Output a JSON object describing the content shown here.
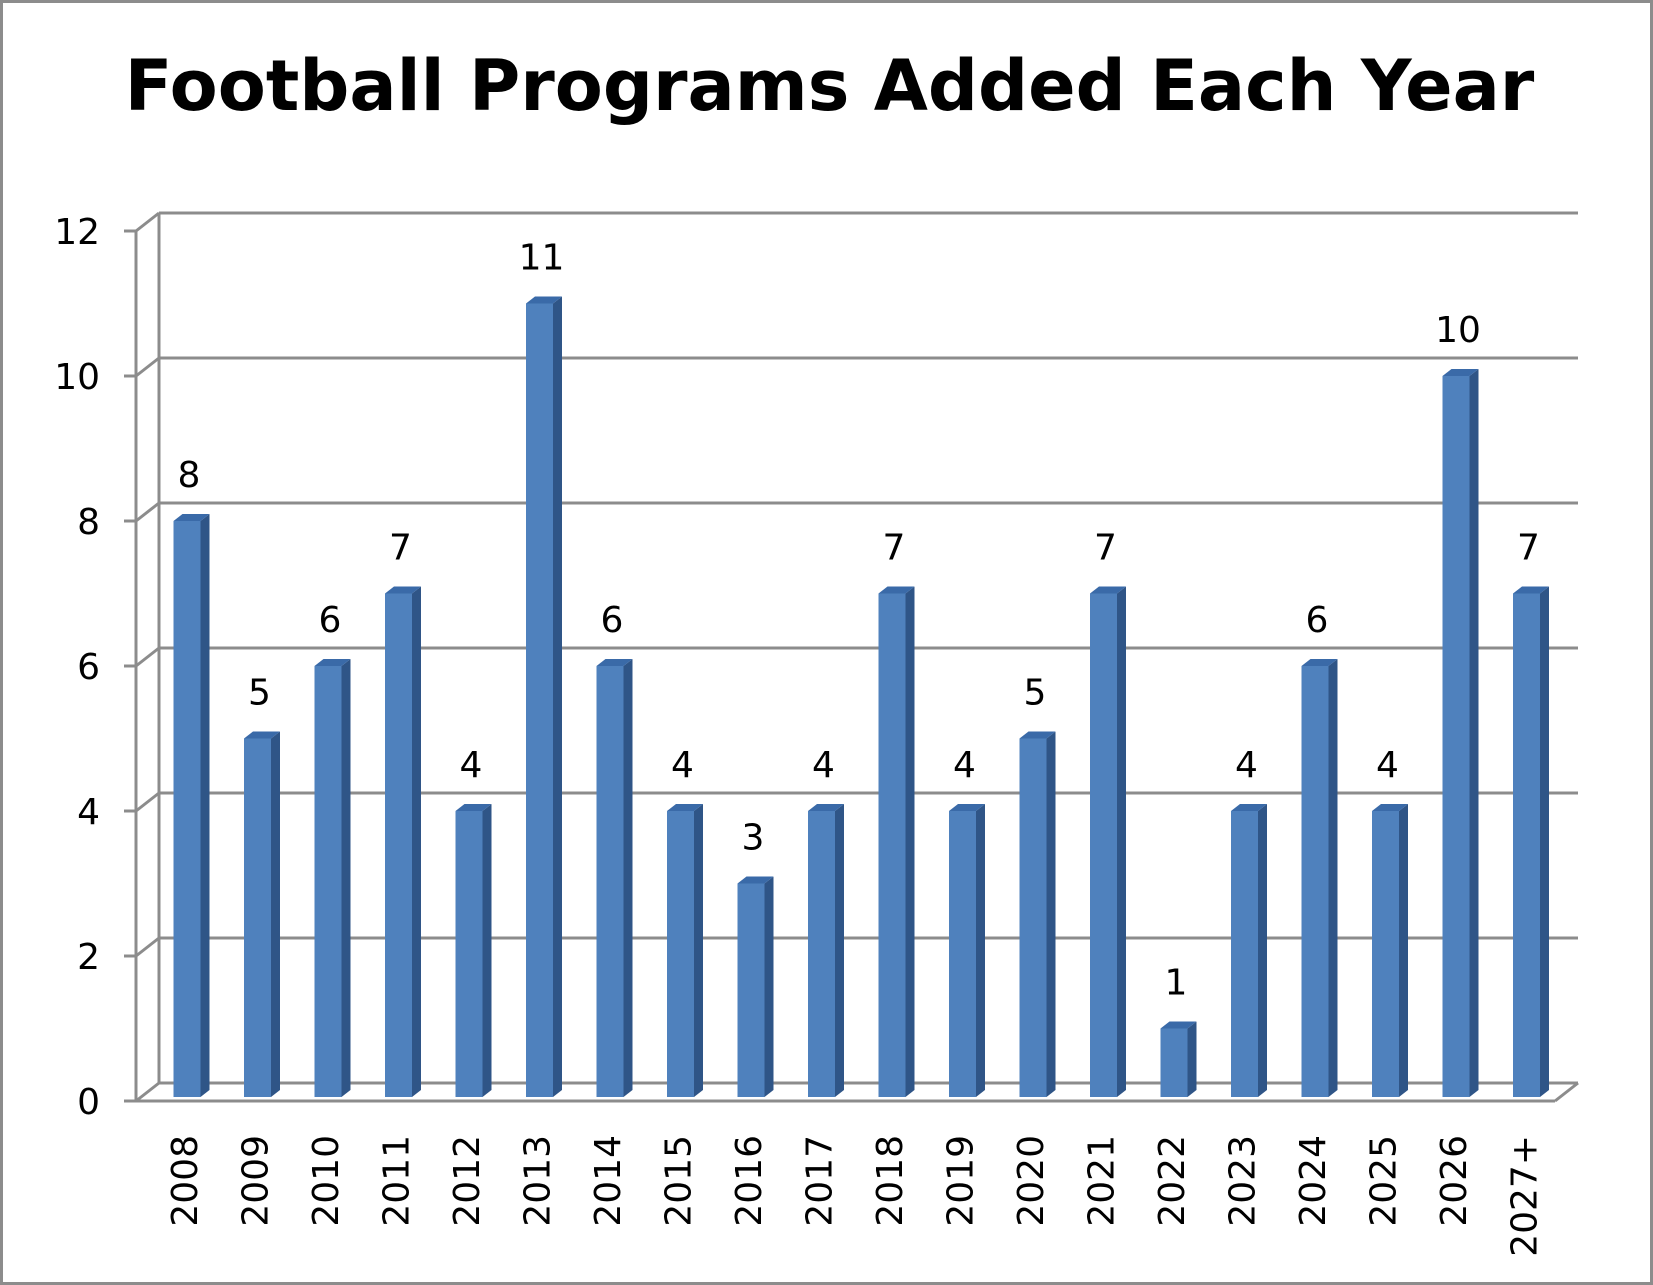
{
  "chart_data": {
    "type": "bar",
    "title": "Football Programs Added Each Year",
    "xlabel": "",
    "ylabel": "",
    "ylim": [
      0,
      12
    ],
    "yticks": [
      0,
      2,
      4,
      6,
      8,
      10,
      12
    ],
    "grid": true,
    "legend": "none",
    "bar_style": "3d-column",
    "colors": {
      "bar_front": "#4f81bd",
      "bar_top": "#3a6aa8",
      "bar_side": "#2f5587",
      "grid": "#8c8c8c"
    },
    "categories": [
      "2008",
      "2009",
      "2010",
      "2011",
      "2012",
      "2013",
      "2014",
      "2015",
      "2016",
      "2017",
      "2018",
      "2019",
      "2020",
      "2021",
      "2022",
      "2023",
      "2024",
      "2025",
      "2026",
      "2027+"
    ],
    "values": [
      8,
      5,
      6,
      7,
      4,
      11,
      6,
      4,
      3,
      4,
      7,
      4,
      5,
      7,
      1,
      4,
      6,
      4,
      10,
      7
    ]
  }
}
